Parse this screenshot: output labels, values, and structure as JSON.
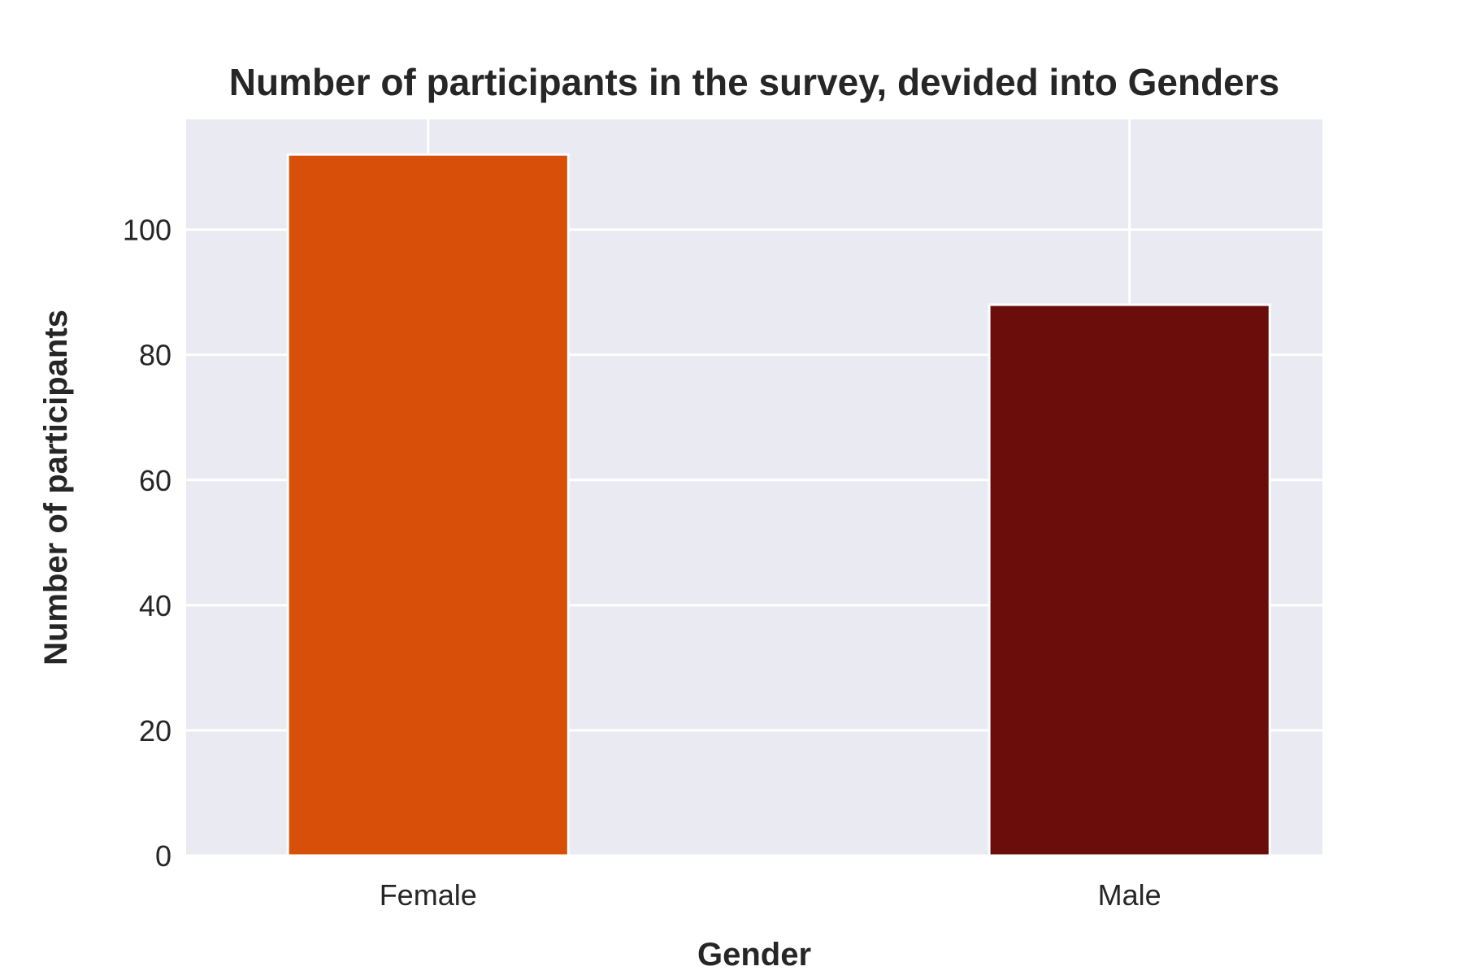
{
  "chart_data": {
    "type": "bar",
    "title": "Number of participants in the survey, devided into Genders",
    "xlabel": "Gender",
    "ylabel": "Number of participants",
    "categories": [
      "Female",
      "Male"
    ],
    "values": [
      112,
      88
    ],
    "colors": [
      "#d84f09",
      "#6b0e0b"
    ],
    "ylim": [
      0,
      117.6
    ],
    "yticks": [
      0,
      20,
      40,
      60,
      80,
      100
    ],
    "grid": true,
    "background": "#eaeaf2",
    "legend": "none"
  }
}
